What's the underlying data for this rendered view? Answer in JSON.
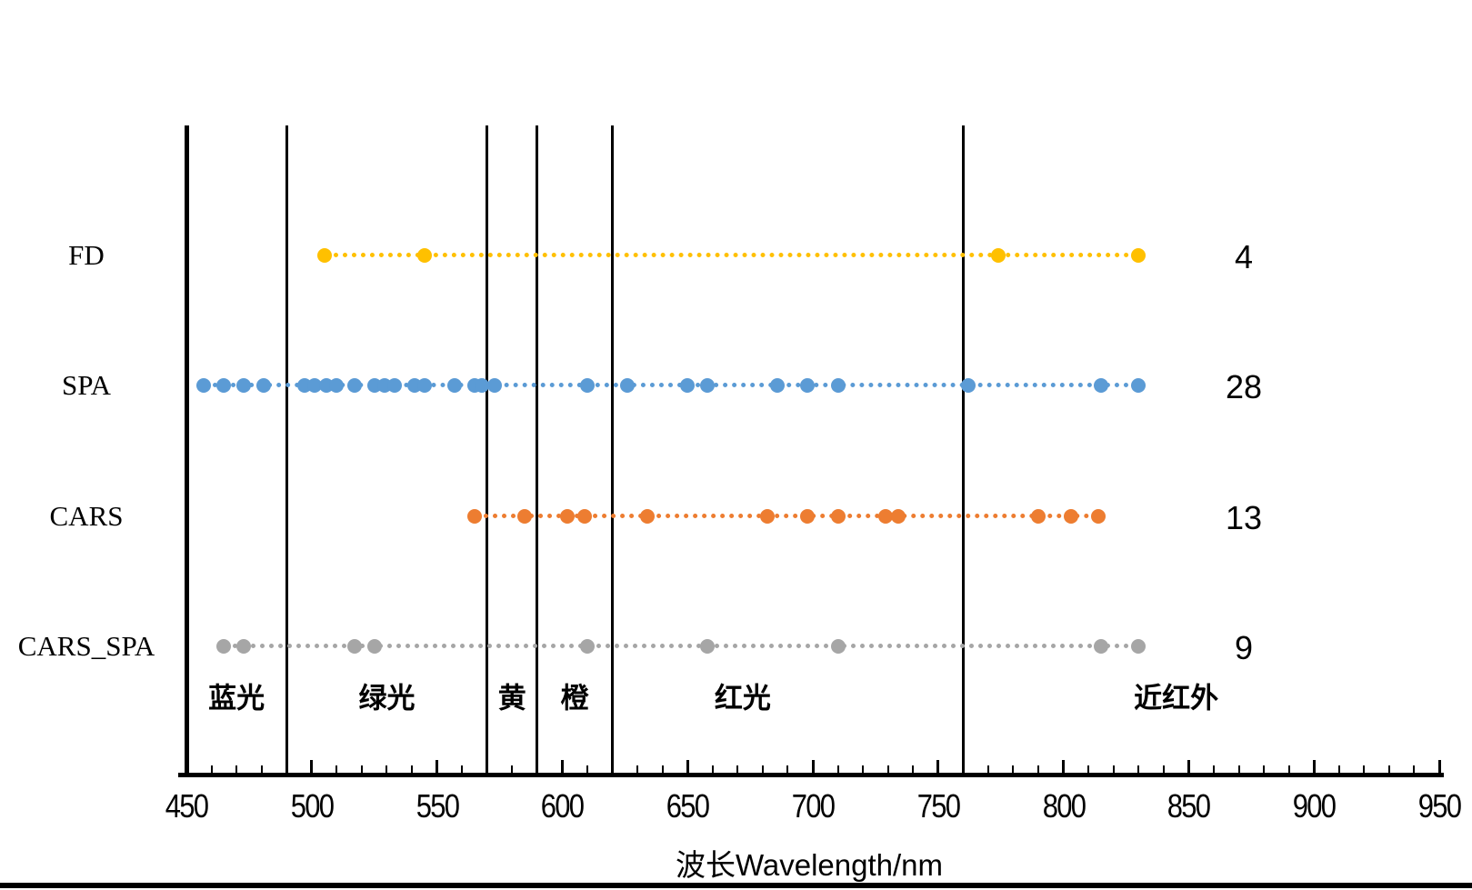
{
  "chart_data": {
    "type": "scatter",
    "title": "",
    "xlabel": "波长Wavelength/nm",
    "ylabel": "",
    "grid": false,
    "legend_position": "none",
    "x_axis": {
      "min": 450,
      "max": 950,
      "major_step": 50,
      "minor_step": 10,
      "tick_labels": [
        "450",
        "500",
        "550",
        "600",
        "650",
        "700",
        "750",
        "800",
        "850",
        "900",
        "950"
      ]
    },
    "boundary_lines_nm": [
      450,
      490,
      570,
      590,
      620,
      760
    ],
    "regions": [
      {
        "label": "蓝光",
        "from": 450,
        "to": 490
      },
      {
        "label": "绿光",
        "from": 490,
        "to": 570
      },
      {
        "label": "黄",
        "from": 570,
        "to": 590
      },
      {
        "label": "橙",
        "from": 590,
        "to": 620
      },
      {
        "label": "红光",
        "from": 620,
        "to": 760,
        "label_nm": 672
      },
      {
        "label": "近红外",
        "from": 760,
        "to": 950,
        "label_nm": 845
      }
    ],
    "series": [
      {
        "name": "FD",
        "color": "#FFC000",
        "count_label": "4",
        "x": [
          505,
          545,
          774,
          830
        ]
      },
      {
        "name": "SPA",
        "color": "#5B9BD5",
        "count_label": "28",
        "x": [
          457,
          465,
          473,
          481,
          497,
          501,
          506,
          510,
          517,
          525,
          529,
          533,
          541,
          545,
          557,
          565,
          568,
          573,
          610,
          626,
          650,
          658,
          686,
          698,
          710,
          762,
          815,
          830
        ]
      },
      {
        "name": "CARS",
        "color": "#ED7D31",
        "count_label": "13",
        "x": [
          565,
          585,
          602,
          609,
          634,
          682,
          698,
          710,
          729,
          734,
          790,
          803,
          814
        ]
      },
      {
        "name": "CARS_SPA",
        "color": "#A6A6A6",
        "count_label": "9",
        "x": [
          465,
          473,
          517,
          525,
          610,
          658,
          710,
          815,
          830
        ]
      }
    ]
  }
}
